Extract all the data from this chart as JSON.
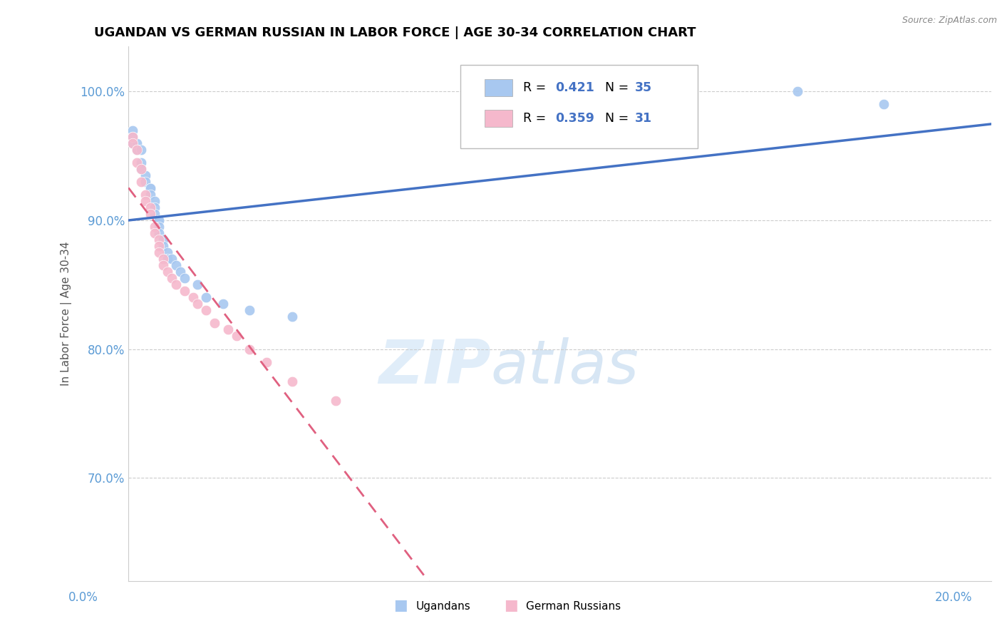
{
  "title": "UGANDAN VS GERMAN RUSSIAN IN LABOR FORCE | AGE 30-34 CORRELATION CHART",
  "source_text": "Source: ZipAtlas.com",
  "ylabel": "In Labor Force | Age 30-34",
  "xlim": [
    0.0,
    0.2
  ],
  "ylim": [
    0.62,
    1.035
  ],
  "ytick_values": [
    0.7,
    0.8,
    0.9,
    1.0
  ],
  "ugandan_color": "#a8c8f0",
  "german_russian_color": "#f5b8cc",
  "ugandan_line_color": "#4472c4",
  "german_russian_line_color": "#e06080",
  "watermark_zip": "ZIP",
  "watermark_atlas": "atlas",
  "ugandan_x": [
    0.001,
    0.001,
    0.001,
    0.002,
    0.002,
    0.003,
    0.003,
    0.003,
    0.004,
    0.004,
    0.005,
    0.005,
    0.005,
    0.006,
    0.006,
    0.006,
    0.007,
    0.007,
    0.007,
    0.007,
    0.008,
    0.008,
    0.009,
    0.009,
    0.01,
    0.011,
    0.012,
    0.013,
    0.016,
    0.018,
    0.022,
    0.028,
    0.038,
    0.155,
    0.175
  ],
  "ugandan_y": [
    0.97,
    0.965,
    0.96,
    0.96,
    0.955,
    0.955,
    0.945,
    0.94,
    0.935,
    0.93,
    0.925,
    0.925,
    0.92,
    0.915,
    0.91,
    0.905,
    0.9,
    0.9,
    0.895,
    0.89,
    0.885,
    0.88,
    0.875,
    0.87,
    0.87,
    0.865,
    0.86,
    0.855,
    0.85,
    0.84,
    0.835,
    0.83,
    0.825,
    1.0,
    0.99
  ],
  "german_russian_x": [
    0.001,
    0.001,
    0.002,
    0.002,
    0.003,
    0.003,
    0.004,
    0.004,
    0.005,
    0.005,
    0.006,
    0.006,
    0.007,
    0.007,
    0.007,
    0.008,
    0.008,
    0.009,
    0.01,
    0.011,
    0.013,
    0.015,
    0.016,
    0.018,
    0.02,
    0.023,
    0.025,
    0.028,
    0.032,
    0.038,
    0.048
  ],
  "german_russian_y": [
    0.965,
    0.96,
    0.955,
    0.945,
    0.94,
    0.93,
    0.92,
    0.915,
    0.91,
    0.905,
    0.895,
    0.89,
    0.885,
    0.88,
    0.875,
    0.87,
    0.865,
    0.86,
    0.855,
    0.85,
    0.845,
    0.84,
    0.835,
    0.83,
    0.82,
    0.815,
    0.81,
    0.8,
    0.79,
    0.775,
    0.76
  ]
}
